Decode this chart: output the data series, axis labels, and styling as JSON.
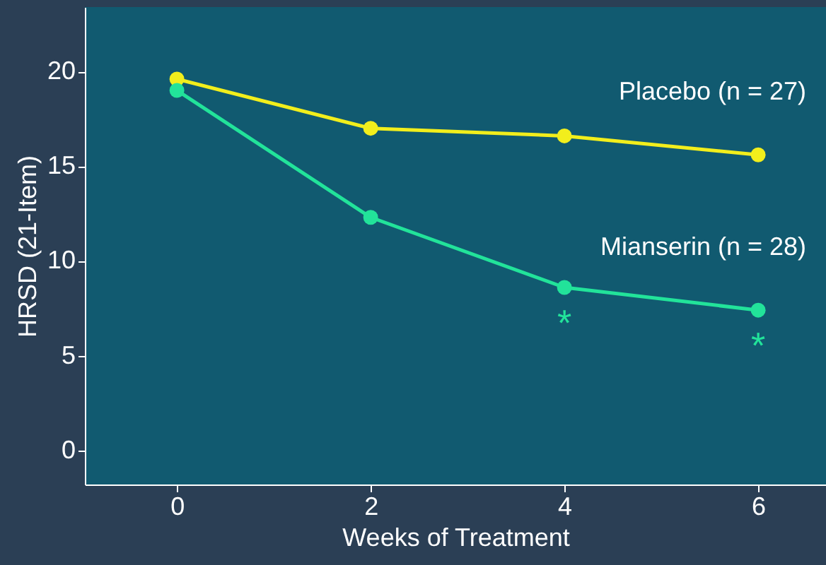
{
  "chart_data": {
    "type": "line",
    "xlabel": "Weeks of Treatment",
    "ylabel": "HRSD (21-Item)",
    "x": [
      0,
      2,
      4,
      6
    ],
    "series": [
      {
        "name": "Placebo (n = 27)",
        "color": "#f2ee1c",
        "values": [
          19.6,
          17.0,
          16.6,
          15.6
        ]
      },
      {
        "name": "Mianserin (n = 28)",
        "color": "#22e39a",
        "values": [
          19.0,
          12.3,
          8.6,
          7.4
        ],
        "value_labels": [
          null,
          null,
          "*",
          "*"
        ]
      }
    ],
    "xlim": [
      -0.95,
      6.7
    ],
    "ylim": [
      -1.8,
      23.4
    ],
    "xticks": [
      0,
      2,
      4,
      6
    ],
    "yticks": [
      0,
      5,
      10,
      15,
      20
    ],
    "marker": "circle",
    "grid": false,
    "legend": false,
    "line_style": "solid"
  }
}
